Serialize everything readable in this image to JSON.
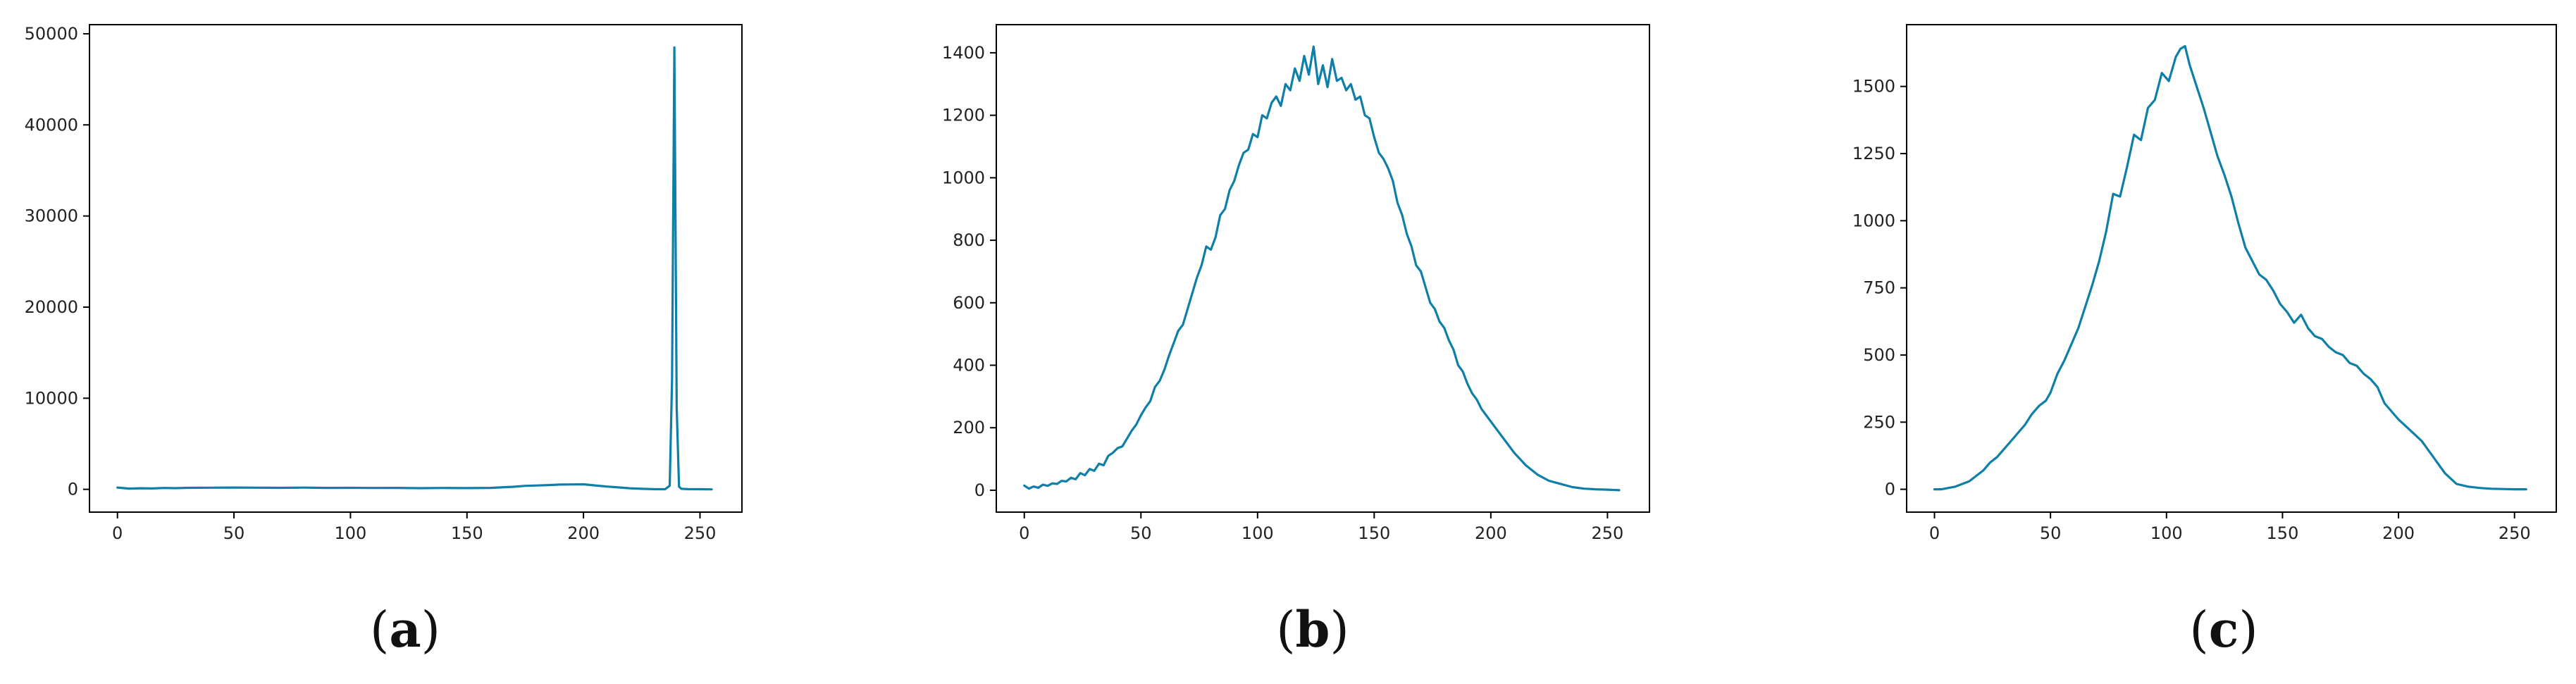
{
  "chart_data": [
    {
      "type": "line",
      "panel_label": "(a)",
      "panel_letter": "a",
      "xlim": [
        -12,
        268
      ],
      "ylim": [
        -2500,
        51000
      ],
      "x_ticks": [
        0,
        50,
        100,
        150,
        200,
        250
      ],
      "y_ticks": [
        0,
        10000,
        20000,
        30000,
        40000,
        50000
      ],
      "color": "#0d7fa8",
      "series": [
        {
          "x": [
            0,
            5,
            10,
            15,
            20,
            25,
            30,
            40,
            50,
            60,
            70,
            80,
            90,
            100,
            110,
            120,
            130,
            140,
            150,
            160,
            170,
            175,
            180,
            185,
            190,
            195,
            200,
            205,
            210,
            215,
            220,
            225,
            230,
            235,
            237,
            238,
            239,
            240,
            241,
            242,
            245,
            250,
            255
          ],
          "y": [
            200,
            80,
            120,
            100,
            150,
            130,
            170,
            180,
            200,
            180,
            170,
            190,
            160,
            170,
            150,
            160,
            130,
            150,
            140,
            160,
            280,
            380,
            420,
            470,
            520,
            540,
            550,
            430,
            310,
            210,
            110,
            60,
            20,
            10,
            400,
            12000,
            48500,
            9000,
            300,
            60,
            20,
            10,
            0
          ]
        }
      ]
    },
    {
      "type": "line",
      "panel_label": "(b)",
      "panel_letter": "b",
      "xlim": [
        -12,
        268
      ],
      "ylim": [
        -70,
        1490
      ],
      "x_ticks": [
        0,
        50,
        100,
        150,
        200,
        250
      ],
      "y_ticks": [
        0,
        200,
        400,
        600,
        800,
        1000,
        1200,
        1400
      ],
      "color": "#0d7fa8",
      "series": [
        {
          "x": [
            0,
            2,
            4,
            6,
            8,
            10,
            12,
            14,
            16,
            18,
            20,
            22,
            24,
            26,
            28,
            30,
            32,
            34,
            36,
            38,
            40,
            42,
            44,
            46,
            48,
            50,
            52,
            54,
            56,
            58,
            60,
            62,
            64,
            66,
            68,
            70,
            72,
            74,
            76,
            78,
            80,
            82,
            84,
            86,
            88,
            90,
            92,
            94,
            96,
            98,
            100,
            102,
            104,
            106,
            108,
            110,
            112,
            114,
            116,
            118,
            120,
            122,
            124,
            126,
            128,
            130,
            132,
            134,
            136,
            138,
            140,
            142,
            144,
            146,
            148,
            150,
            152,
            154,
            156,
            158,
            160,
            162,
            164,
            166,
            168,
            170,
            172,
            174,
            176,
            178,
            180,
            182,
            184,
            186,
            188,
            190,
            192,
            194,
            196,
            198,
            200,
            205,
            210,
            215,
            220,
            225,
            230,
            235,
            240,
            245,
            250,
            255
          ],
          "y": [
            15,
            5,
            12,
            8,
            18,
            14,
            22,
            20,
            30,
            28,
            40,
            35,
            55,
            48,
            68,
            62,
            85,
            80,
            110,
            120,
            135,
            140,
            165,
            190,
            210,
            240,
            265,
            285,
            330,
            350,
            385,
            430,
            470,
            510,
            530,
            580,
            630,
            680,
            720,
            780,
            770,
            810,
            880,
            900,
            960,
            990,
            1040,
            1080,
            1090,
            1140,
            1130,
            1200,
            1190,
            1240,
            1260,
            1230,
            1300,
            1280,
            1350,
            1310,
            1390,
            1330,
            1420,
            1300,
            1360,
            1290,
            1380,
            1310,
            1320,
            1280,
            1300,
            1250,
            1260,
            1200,
            1190,
            1130,
            1080,
            1060,
            1030,
            990,
            920,
            880,
            820,
            780,
            720,
            700,
            650,
            600,
            580,
            540,
            520,
            480,
            450,
            400,
            380,
            340,
            310,
            290,
            260,
            240,
            220,
            170,
            120,
            80,
            50,
            30,
            20,
            10,
            5,
            3,
            2,
            0
          ]
        }
      ]
    },
    {
      "type": "line",
      "panel_label": "(c)",
      "panel_letter": "c",
      "xlim": [
        -12,
        268
      ],
      "ylim": [
        -85,
        1730
      ],
      "x_ticks": [
        0,
        50,
        100,
        150,
        200,
        250
      ],
      "y_ticks": [
        0,
        250,
        500,
        750,
        1000,
        1250,
        1500
      ],
      "color": "#0d7fa8",
      "series": [
        {
          "x": [
            0,
            3,
            6,
            9,
            12,
            15,
            18,
            21,
            24,
            27,
            30,
            33,
            36,
            39,
            42,
            45,
            48,
            50,
            53,
            56,
            59,
            62,
            65,
            68,
            71,
            74,
            77,
            80,
            83,
            86,
            89,
            92,
            95,
            98,
            101,
            104,
            106,
            108,
            110,
            113,
            116,
            119,
            122,
            125,
            128,
            131,
            134,
            137,
            140,
            143,
            146,
            149,
            152,
            155,
            158,
            161,
            164,
            167,
            170,
            173,
            176,
            179,
            182,
            185,
            188,
            191,
            194,
            197,
            200,
            205,
            210,
            215,
            220,
            225,
            230,
            235,
            240,
            245,
            250,
            255
          ],
          "y": [
            0,
            0,
            5,
            10,
            20,
            30,
            50,
            70,
            100,
            120,
            150,
            180,
            210,
            240,
            280,
            310,
            330,
            360,
            430,
            480,
            540,
            600,
            680,
            760,
            850,
            960,
            1100,
            1090,
            1200,
            1320,
            1300,
            1420,
            1450,
            1550,
            1520,
            1610,
            1640,
            1650,
            1580,
            1500,
            1420,
            1330,
            1240,
            1170,
            1090,
            990,
            900,
            850,
            800,
            780,
            740,
            690,
            660,
            620,
            650,
            600,
            570,
            560,
            530,
            510,
            500,
            470,
            460,
            430,
            410,
            380,
            320,
            290,
            260,
            220,
            180,
            120,
            60,
            20,
            10,
            5,
            2,
            1,
            0,
            0
          ]
        }
      ]
    }
  ]
}
